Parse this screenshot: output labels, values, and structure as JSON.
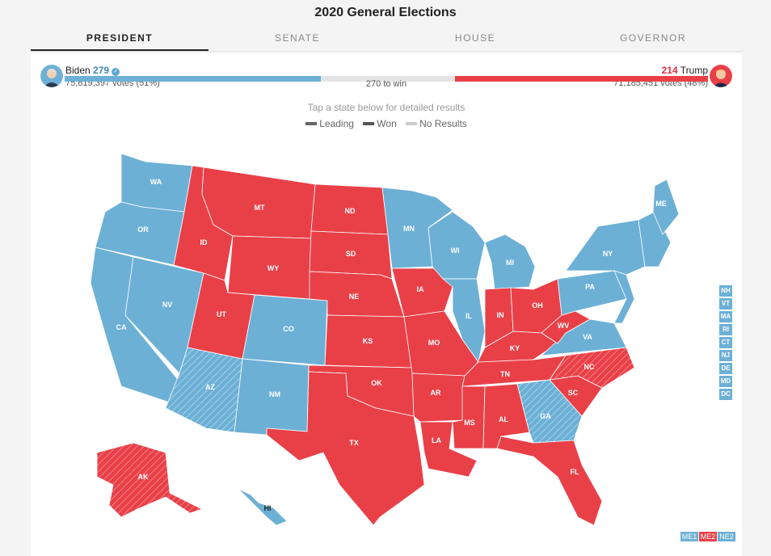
{
  "title": "2020 General Elections",
  "tabs": [
    {
      "label": "PRESIDENT",
      "active": true
    },
    {
      "label": "SENATE",
      "active": false
    },
    {
      "label": "HOUSE",
      "active": false
    },
    {
      "label": "GOVERNOR",
      "active": false
    }
  ],
  "candidates": {
    "dem": {
      "name": "Biden",
      "electoral_votes": "279",
      "votes": "75,619,397 votes (51%)",
      "share": 0.51,
      "color": "#6cb0d6",
      "winner": true
    },
    "rep": {
      "name": "Trump",
      "electoral_votes": "214",
      "votes": "71,185,451 votes (48%)",
      "share": 0.48,
      "color": "#e94048"
    }
  },
  "to_win": "270 to win",
  "instruction": "Tap a state below for detailed results",
  "legend": [
    "Leading",
    "Won",
    "No Results"
  ],
  "colors": {
    "dem": "#6cb0d6",
    "rep": "#e94048",
    "no_results": "#cccccc",
    "legend_dark": "#555555"
  },
  "states": [
    {
      "abbr": "WA",
      "party": "dem"
    },
    {
      "abbr": "OR",
      "party": "dem"
    },
    {
      "abbr": "CA",
      "party": "dem"
    },
    {
      "abbr": "NV",
      "party": "dem"
    },
    {
      "abbr": "ID",
      "party": "rep"
    },
    {
      "abbr": "MT",
      "party": "rep"
    },
    {
      "abbr": "WY",
      "party": "rep"
    },
    {
      "abbr": "UT",
      "party": "rep"
    },
    {
      "abbr": "AZ",
      "party": "dem",
      "leading": true
    },
    {
      "abbr": "CO",
      "party": "dem"
    },
    {
      "abbr": "NM",
      "party": "dem"
    },
    {
      "abbr": "ND",
      "party": "rep"
    },
    {
      "abbr": "SD",
      "party": "rep"
    },
    {
      "abbr": "NE",
      "party": "rep"
    },
    {
      "abbr": "KS",
      "party": "rep"
    },
    {
      "abbr": "OK",
      "party": "rep"
    },
    {
      "abbr": "TX",
      "party": "rep"
    },
    {
      "abbr": "MN",
      "party": "dem"
    },
    {
      "abbr": "IA",
      "party": "rep"
    },
    {
      "abbr": "MO",
      "party": "rep"
    },
    {
      "abbr": "AR",
      "party": "rep"
    },
    {
      "abbr": "LA",
      "party": "rep"
    },
    {
      "abbr": "WI",
      "party": "dem"
    },
    {
      "abbr": "IL",
      "party": "dem"
    },
    {
      "abbr": "MI",
      "party": "dem"
    },
    {
      "abbr": "IN",
      "party": "rep"
    },
    {
      "abbr": "OH",
      "party": "rep"
    },
    {
      "abbr": "KY",
      "party": "rep"
    },
    {
      "abbr": "TN",
      "party": "rep"
    },
    {
      "abbr": "MS",
      "party": "rep"
    },
    {
      "abbr": "AL",
      "party": "rep"
    },
    {
      "abbr": "GA",
      "party": "dem",
      "leading": true
    },
    {
      "abbr": "FL",
      "party": "rep"
    },
    {
      "abbr": "SC",
      "party": "rep"
    },
    {
      "abbr": "NC",
      "party": "rep",
      "leading": true
    },
    {
      "abbr": "VA",
      "party": "dem"
    },
    {
      "abbr": "WV",
      "party": "rep"
    },
    {
      "abbr": "PA",
      "party": "dem"
    },
    {
      "abbr": "NY",
      "party": "dem"
    },
    {
      "abbr": "ME",
      "party": "dem"
    },
    {
      "abbr": "AK",
      "party": "rep",
      "leading": true
    },
    {
      "abbr": "HI",
      "party": "dem"
    }
  ],
  "small_states": [
    "NH",
    "VT",
    "MA",
    "RI",
    "CT",
    "NJ",
    "DE",
    "MD",
    "DC"
  ],
  "split_districts": [
    {
      "label": "ME1",
      "party": "dem"
    },
    {
      "label": "ME2",
      "party": "rep"
    },
    {
      "label": "NE2",
      "party": "dem"
    }
  ]
}
